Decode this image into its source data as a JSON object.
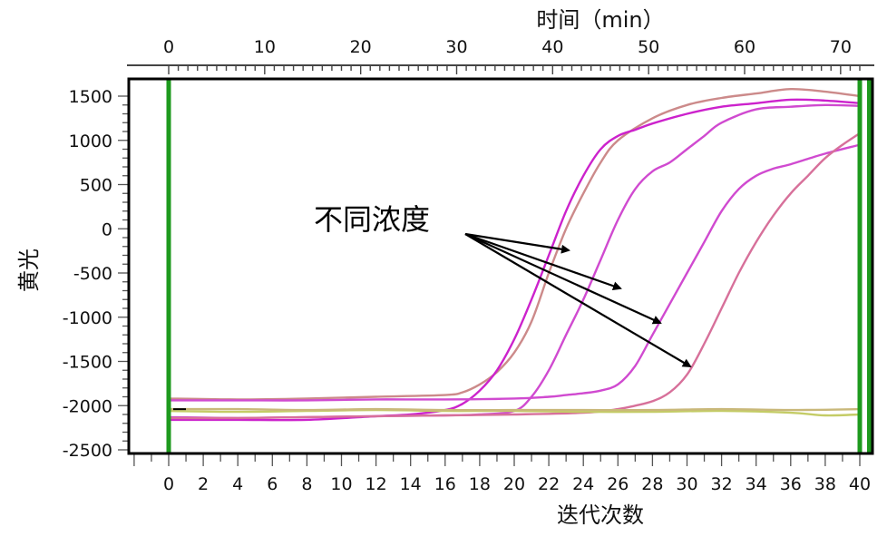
{
  "chart_data": {
    "type": "line",
    "title": "",
    "xlabel": "迭代次数",
    "x2label": "时间（min）",
    "ylabel": "黄光",
    "xlim": [
      -2,
      40.7
    ],
    "ylim": [
      -2550,
      1700
    ],
    "x_ticks": [
      0,
      2,
      4,
      6,
      8,
      10,
      12,
      14,
      16,
      18,
      20,
      22,
      24,
      26,
      28,
      30,
      32,
      34,
      36,
      38,
      40
    ],
    "x2_ticks": [
      0,
      10,
      20,
      30,
      40,
      50,
      60,
      70
    ],
    "x2_per_x": 1.8,
    "y_ticks": [
      -2500,
      -2000,
      -1500,
      -1000,
      -500,
      0,
      500,
      1000,
      1500
    ],
    "annotation": "不同浓度",
    "series": [
      {
        "color": "#cc8a8a",
        "x": [
          0,
          4,
          8,
          12,
          16,
          17,
          18,
          19,
          20,
          21,
          22,
          23,
          24,
          25,
          26,
          28,
          30,
          32,
          34,
          36,
          38,
          40
        ],
        "y": [
          -1920,
          -1930,
          -1920,
          -1900,
          -1880,
          -1850,
          -1760,
          -1620,
          -1400,
          -1050,
          -500,
          0,
          400,
          750,
          1000,
          1250,
          1400,
          1480,
          1530,
          1580,
          1550,
          1500
        ]
      },
      {
        "color": "#cc22cc",
        "x": [
          0,
          4,
          8,
          12,
          14,
          16,
          17,
          18,
          19,
          20,
          21,
          22,
          23,
          24,
          25,
          26,
          27,
          28,
          30,
          32,
          34,
          36,
          38,
          40
        ],
        "y": [
          -2160,
          -2160,
          -2160,
          -2120,
          -2100,
          -2050,
          -1980,
          -1830,
          -1600,
          -1250,
          -800,
          -300,
          200,
          600,
          900,
          1050,
          1120,
          1190,
          1300,
          1380,
          1420,
          1460,
          1450,
          1420
        ]
      },
      {
        "color": "#d04ad0",
        "x": [
          0,
          4,
          8,
          12,
          16,
          18,
          20,
          21,
          22,
          23,
          24,
          25,
          26,
          27,
          28,
          29,
          30,
          31,
          32,
          34,
          36,
          38,
          40
        ],
        "y": [
          -2130,
          -2140,
          -2130,
          -2120,
          -2110,
          -2100,
          -2060,
          -1900,
          -1600,
          -1200,
          -800,
          -350,
          100,
          450,
          650,
          750,
          900,
          1050,
          1200,
          1350,
          1380,
          1400,
          1390
        ]
      },
      {
        "color": "#d04ad0",
        "x": [
          0,
          4,
          8,
          12,
          16,
          20,
          22,
          23,
          24,
          25,
          26,
          27,
          28,
          29,
          30,
          31,
          32,
          33,
          34,
          35,
          36,
          38,
          40
        ],
        "y": [
          -1940,
          -1940,
          -1940,
          -1930,
          -1930,
          -1920,
          -1900,
          -1880,
          -1860,
          -1830,
          -1760,
          -1550,
          -1200,
          -850,
          -500,
          -150,
          200,
          450,
          600,
          680,
          730,
          850,
          950
        ]
      },
      {
        "color": "#d7709a",
        "x": [
          0,
          4,
          8,
          12,
          16,
          20,
          24,
          26,
          27,
          28,
          29,
          30,
          31,
          32,
          33,
          34,
          35,
          36,
          37,
          38,
          39,
          40
        ],
        "y": [
          -2140,
          -2140,
          -2130,
          -2120,
          -2110,
          -2100,
          -2080,
          -2040,
          -2000,
          -1950,
          -1850,
          -1650,
          -1300,
          -900,
          -500,
          -150,
          150,
          400,
          600,
          800,
          950,
          1080
        ]
      },
      {
        "color": "#c4cc66",
        "x": [
          0,
          4,
          8,
          12,
          16,
          20,
          24,
          28,
          32,
          36,
          38,
          40
        ],
        "y": [
          -2060,
          -2070,
          -2060,
          -2050,
          -2060,
          -2060,
          -2070,
          -2070,
          -2060,
          -2080,
          -2110,
          -2100
        ]
      },
      {
        "color": "#c9b87a",
        "x": [
          0,
          4,
          8,
          12,
          16,
          20,
          24,
          28,
          32,
          36,
          40
        ],
        "y": [
          -2040,
          -2040,
          -2050,
          -2040,
          -2050,
          -2050,
          -2050,
          -2050,
          -2040,
          -2050,
          -2040
        ]
      }
    ],
    "threshold_lines_x": [
      0,
      40,
      40.55
    ],
    "threshold_color": "#1e9a1e",
    "grid": false,
    "legend": "none"
  }
}
